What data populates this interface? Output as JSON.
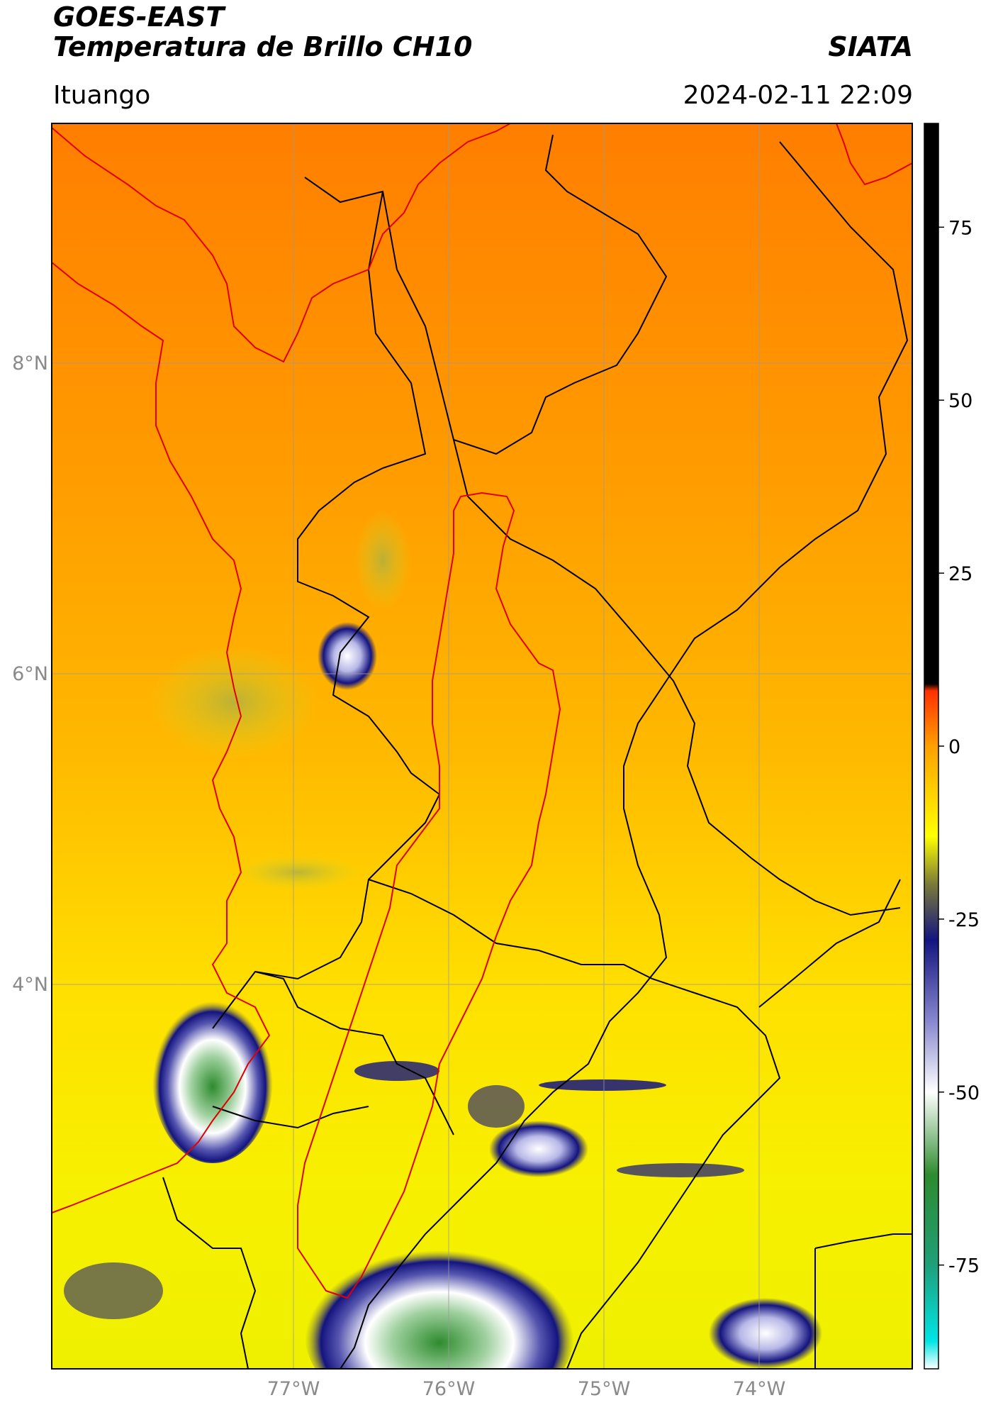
{
  "header": {
    "title_line1": "GOES-EAST",
    "title_line2": "Temperatura de Brillo CH10",
    "agency": "SIATA",
    "region": "Ituango",
    "datetime": "2024-02-11 22:09"
  },
  "map": {
    "lat_labels": [
      "8°N",
      "6°N",
      "4°N"
    ],
    "lon_labels": [
      "77°W",
      "76°W",
      "75°W",
      "74°W"
    ]
  },
  "colorbar": {
    "ticks": [
      "75",
      "50",
      "25",
      "0",
      "-25",
      "-50",
      "-75"
    ],
    "tick_values": [
      75,
      50,
      25,
      0,
      -25,
      -50,
      -75
    ],
    "range": [
      -90,
      90
    ],
    "stops": [
      {
        "value": -90,
        "color": "#ffffff"
      },
      {
        "value": -86,
        "color": "#00e5e5"
      },
      {
        "value": -75,
        "color": "#1f9f7a"
      },
      {
        "value": -62,
        "color": "#2e8b2e"
      },
      {
        "value": -50,
        "color": "#ffffff"
      },
      {
        "value": -40,
        "color": "#8a8ad0"
      },
      {
        "value": -28,
        "color": "#141480"
      },
      {
        "value": -20,
        "color": "#7a7a3a"
      },
      {
        "value": -13,
        "color": "#ffff00"
      },
      {
        "value": 0,
        "color": "#ffa000"
      },
      {
        "value": 8,
        "color": "#ff3000"
      },
      {
        "value": 9,
        "color": "#000000"
      },
      {
        "value": 90,
        "color": "#000000"
      }
    ]
  }
}
